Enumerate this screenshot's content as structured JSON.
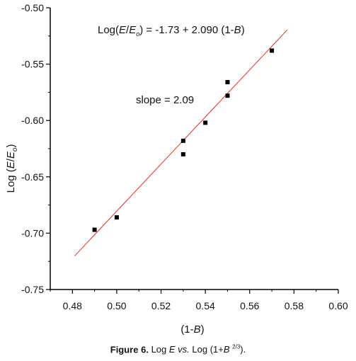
{
  "chart_data": {
    "type": "scatter",
    "xlabel": "(1-B)",
    "ylabel": "Log (E/Eo)",
    "xlim": [
      0.47,
      0.6
    ],
    "ylim": [
      -0.75,
      -0.5
    ],
    "x_ticks": [
      "0.48",
      "0.50",
      "0.52",
      "0.54",
      "0.56",
      "0.58",
      "0.60"
    ],
    "y_ticks": [
      "-0.50",
      "-0.55",
      "-0.60",
      "-0.65",
      "-0.70",
      "-0.75"
    ],
    "points": [
      {
        "x": 0.49,
        "y": -0.697
      },
      {
        "x": 0.5,
        "y": -0.686
      },
      {
        "x": 0.53,
        "y": -0.618
      },
      {
        "x": 0.53,
        "y": -0.63
      },
      {
        "x": 0.54,
        "y": -0.602
      },
      {
        "x": 0.55,
        "y": -0.566
      },
      {
        "x": 0.55,
        "y": -0.578
      },
      {
        "x": 0.57,
        "y": -0.538
      }
    ],
    "fit_line": {
      "x": [
        0.481,
        0.577
      ],
      "y": [
        -0.7202,
        -0.5195
      ],
      "color": "#e0302a"
    },
    "annotations": {
      "equation": "Log(E/Eo) = -1.73 + 2.090 (1-B)",
      "slope": "slope = 2.09"
    }
  },
  "caption": {
    "label": "Figure 6.",
    "text": "Log E vs. Log (1+B 2/3)."
  }
}
